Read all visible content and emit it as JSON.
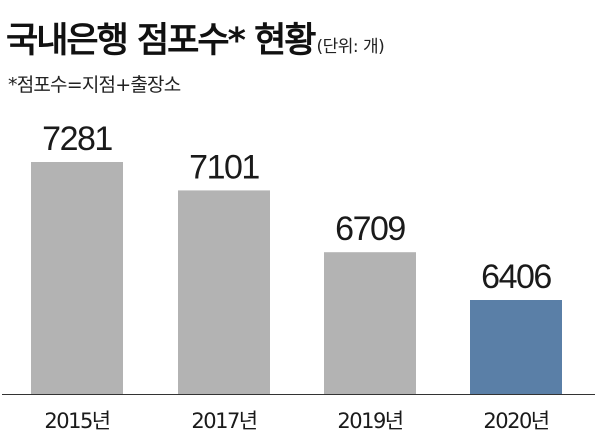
{
  "title": "국내은행 점포수* 현황",
  "unit": "(단위: 개)",
  "note": "*점포수=지점+출장소",
  "colors": {
    "bar": "#b3b3b3",
    "highlight": "#5a7fa7",
    "axis": "#333333"
  },
  "chart_data": {
    "type": "bar",
    "title": "국내은행 점포수* 현황",
    "unit": "개",
    "categories": [
      "2015년",
      "2017년",
      "2019년",
      "2020년"
    ],
    "values": [
      7281,
      7101,
      6709,
      6406
    ],
    "highlight_index": 3,
    "grid": false,
    "legend": "none"
  }
}
